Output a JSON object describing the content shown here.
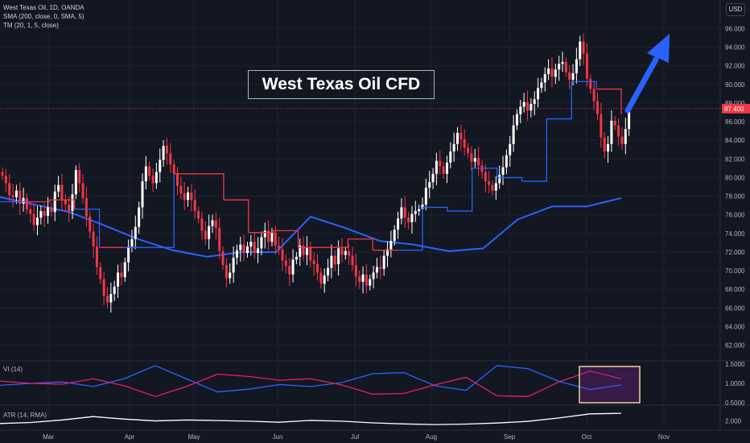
{
  "legend": {
    "symbol": "West Texas Oil, 1D, OANDA",
    "sma": "SMA (200, close, 0, SMA, 5)",
    "tm": "TM (20, 1, 5, close)"
  },
  "currency": "USD",
  "title": "West Texas Oil CFD",
  "current_price": "87.400",
  "panes": {
    "vi_label": "VI (14)",
    "atr_label": "ATR (14, RMA)"
  },
  "colors": {
    "up": "#ffffff",
    "down": "#f23645",
    "sma": "#2962ff",
    "tm_up": "#2962ff",
    "tm_down": "#f23645",
    "vi_plus": "#2962ff",
    "vi_minus": "#e91e63",
    "atr": "#ffffff",
    "highlight_box": "#f5cf91",
    "arrow": "#2962ff"
  },
  "chart_data": [
    {
      "type": "candlestick",
      "title": "West Texas Oil, 1D, OANDA",
      "x_ticks": [
        "Mar",
        "Apr",
        "May",
        "Jun",
        "Jul",
        "Aug",
        "Sep",
        "Oct",
        "Nov"
      ],
      "y_ticks": [
        "62.000",
        "64.000",
        "66.000",
        "68.000",
        "70.000",
        "72.000",
        "74.000",
        "76.000",
        "78.000",
        "80.000",
        "82.000",
        "84.000",
        "86.000",
        "88.000",
        "90.000",
        "92.000",
        "94.000",
        "96.000"
      ],
      "ylim": [
        60.5,
        97.5
      ],
      "closes": [
        80.2,
        79.4,
        78.1,
        77.9,
        78.6,
        77.2,
        77.8,
        76.6,
        76.1,
        74.9,
        75.7,
        76.4,
        75.9,
        76.8,
        76.3,
        78.5,
        79.2,
        77.6,
        77.1,
        76.4,
        78.2,
        80.8,
        79.4,
        77.8,
        75.8,
        74.2,
        72.6,
        70.4,
        69.1,
        67.3,
        66.6,
        67.5,
        68.3,
        69.8,
        69.3,
        70.9,
        72.6,
        73.4,
        74.7,
        76.8,
        79.6,
        81.2,
        80.2,
        79.4,
        80.6,
        81.9,
        83.4,
        82.6,
        81.4,
        80.4,
        79.1,
        78.3,
        77.6,
        78.4,
        77.6,
        76.4,
        75.6,
        74.3,
        73.4,
        74.8,
        75.4,
        74.6,
        72.1,
        70.6,
        69.2,
        69.8,
        71.4,
        72.2,
        72.8,
        71.9,
        72.6,
        73.1,
        71.9,
        72.4,
        73.6,
        74.3,
        73.1,
        74.1,
        72.7,
        72.3,
        71.1,
        70.5,
        69.6,
        71.2,
        71.5,
        72.7,
        71.7,
        72.5,
        71.1,
        70.7,
        69.8,
        68.6,
        69.5,
        70.3,
        71.6,
        70.7,
        72.4,
        71.7,
        72.1,
        71.6,
        70.6,
        69.4,
        68.8,
        69.6,
        68.4,
        69.1,
        69.8,
        70.4,
        70.2,
        71.6,
        72.3,
        73.2,
        74.4,
        75.6,
        76.8,
        75.7,
        75.2,
        76.1,
        76.4,
        76.6,
        77.1,
        78.9,
        79.5,
        80.4,
        81.8,
        81.2,
        80.4,
        81.6,
        82.8,
        83.6,
        84.8,
        84.1,
        83.2,
        82.6,
        81.7,
        82.1,
        81.3,
        80.6,
        79.6,
        79.2,
        78.6,
        79.4,
        80.3,
        81.1,
        82.4,
        83.6,
        85.6,
        86.8,
        87.6,
        88.1,
        87.2,
        87.9,
        88.4,
        89.6,
        90.2,
        91.1,
        91.7,
        90.8,
        91.6,
        92.2,
        92.4,
        91.3,
        90.5,
        91.2,
        92.7,
        94.6,
        93.3,
        90.6,
        89.5,
        88.2,
        86.8,
        84.3,
        82.8,
        83.6,
        86.1,
        85.6,
        84.4,
        83.6,
        85.2,
        87.4
      ],
      "sma_200": [
        77.9,
        77.1,
        76.3,
        74.9,
        73.4,
        72.2,
        71.5,
        72.0,
        72.0,
        75.8,
        74.6,
        73.2,
        72.8,
        72.1,
        72.4,
        75.5,
        76.9,
        76.9,
        77.8
      ],
      "tm": [
        77.4,
        77.4,
        77.6,
        76.6,
        72.5,
        72.5,
        72.5,
        80.4,
        80.4,
        77.6,
        74.1,
        74.3,
        72.5,
        72.5,
        73.4,
        72.2,
        72.2,
        76.8,
        76.4,
        81.0,
        80.0,
        79.6,
        86.3,
        90.3,
        89.5,
        86.8
      ],
      "vi_plus": [
        0.95,
        1.0,
        1.04,
        0.92,
        1.12,
        1.46,
        1.12,
        0.78,
        0.85,
        0.97,
        0.92,
        1.02,
        1.25,
        1.28,
        0.94,
        0.82,
        1.46,
        1.38,
        1.05,
        0.84,
        0.96
      ],
      "vi_minus": [
        1.06,
        1.0,
        0.98,
        1.12,
        0.94,
        0.66,
        0.92,
        1.24,
        1.18,
        1.08,
        1.12,
        0.96,
        0.72,
        0.74,
        0.96,
        1.16,
        0.68,
        0.66,
        1.04,
        1.32,
        1.12
      ],
      "vi_ylim": [
        0.5,
        1.5
      ],
      "vi_ticks": [
        "1.5000",
        "1.0000",
        "0.5000"
      ],
      "atr": [
        1.78,
        1.86,
        2.05,
        2.31,
        2.12,
        1.98,
        2.05,
        2.01,
        1.96,
        1.88,
        2.02,
        1.96,
        1.83,
        1.75,
        1.7,
        1.74,
        1.82,
        1.95,
        2.21,
        2.52,
        2.56
      ],
      "atr_ticks": [
        "2.000"
      ],
      "atr_ylim": [
        1.4,
        3.0
      ]
    }
  ]
}
